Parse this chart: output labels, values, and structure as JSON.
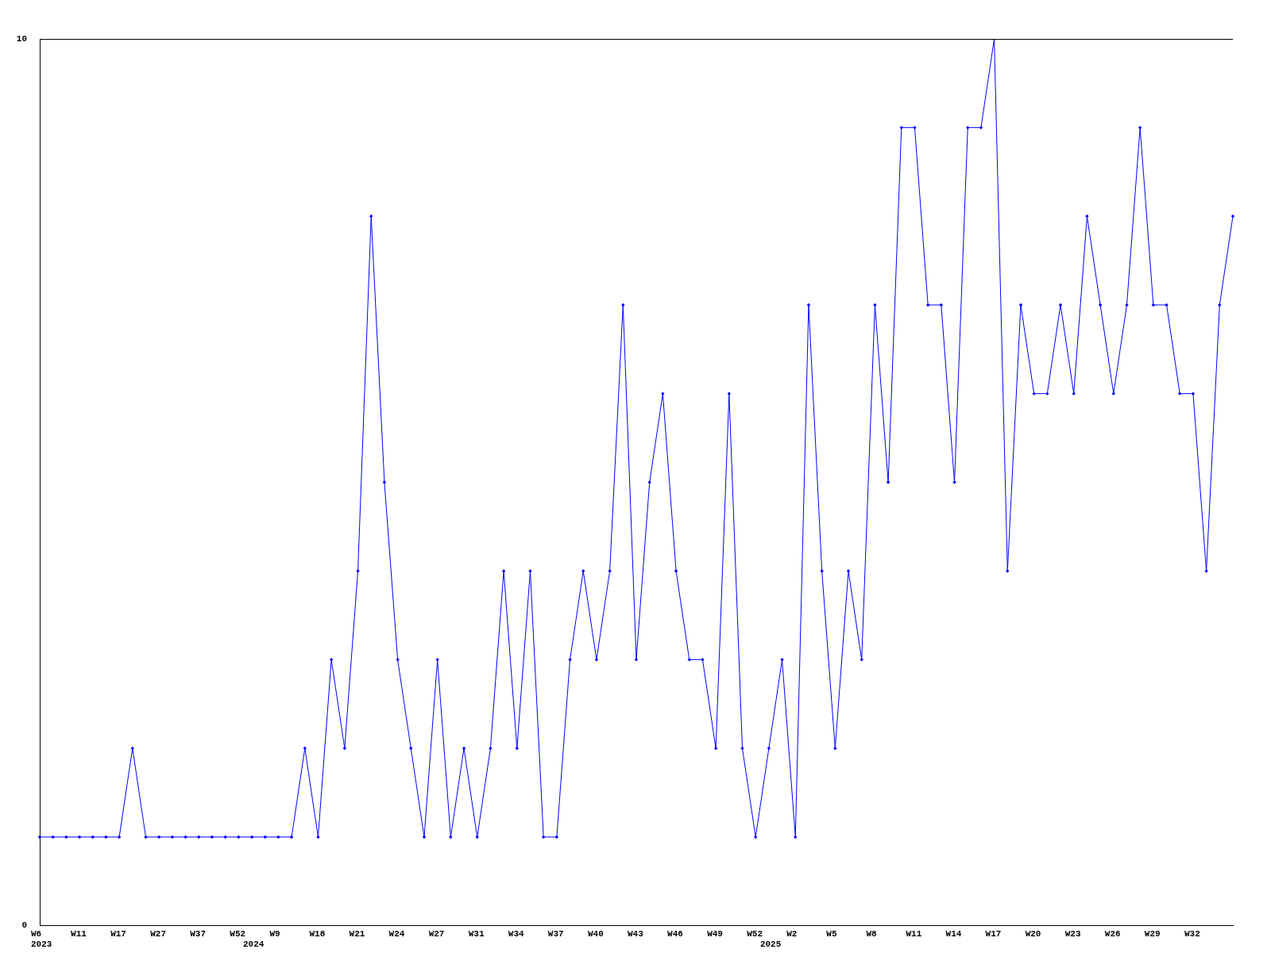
{
  "chart_data": {
    "type": "line",
    "categories": [
      "W6\n2023",
      null,
      null,
      "W11",
      null,
      null,
      "W17",
      null,
      null,
      "W27",
      null,
      null,
      "W37",
      null,
      null,
      "W52",
      "\n2024",
      null,
      "W9",
      null,
      null,
      "W18",
      null,
      null,
      "W21",
      null,
      null,
      "W24",
      null,
      null,
      "W27",
      null,
      null,
      "W31",
      null,
      null,
      "W34",
      null,
      null,
      "W37",
      null,
      null,
      "W40",
      null,
      null,
      "W43",
      null,
      null,
      "W46",
      null,
      null,
      "W49",
      null,
      null,
      "W52",
      "\n2025",
      null,
      "W2",
      null,
      null,
      "W5",
      null,
      null,
      "W8",
      null,
      null,
      "W11",
      null,
      null,
      "W14",
      null,
      null,
      "W17",
      null,
      null,
      "W20",
      null,
      null,
      "W23",
      null,
      null,
      "W26",
      null,
      null,
      "W29",
      null,
      null,
      "W32",
      null,
      null,
      null
    ],
    "series": [
      {
        "color": "#0000ff",
        "values": [
          1,
          1,
          1,
          1,
          1,
          1,
          1,
          2,
          1,
          1,
          1,
          1,
          1,
          1,
          1,
          1,
          1,
          1,
          1,
          1,
          2,
          1,
          3,
          2,
          4,
          8,
          5,
          3,
          2,
          1,
          3,
          1,
          2,
          1,
          2,
          4,
          2,
          4,
          1,
          1,
          3,
          4,
          3,
          4,
          7,
          3,
          5,
          6,
          4,
          3,
          3,
          2,
          6,
          2,
          1,
          2,
          3,
          1,
          7,
          4,
          2,
          4,
          3,
          7,
          5,
          9,
          9,
          7,
          7,
          5,
          9,
          9,
          10,
          4,
          7,
          6,
          6,
          7,
          6,
          8,
          7,
          6,
          7,
          9,
          7,
          7,
          6,
          6,
          4,
          7,
          8
        ]
      }
    ],
    "ylim": [
      0,
      10
    ],
    "yticks": [
      0,
      10
    ],
    "grid": false,
    "legend": false,
    "marker": "diamond",
    "line_style": "solid"
  }
}
